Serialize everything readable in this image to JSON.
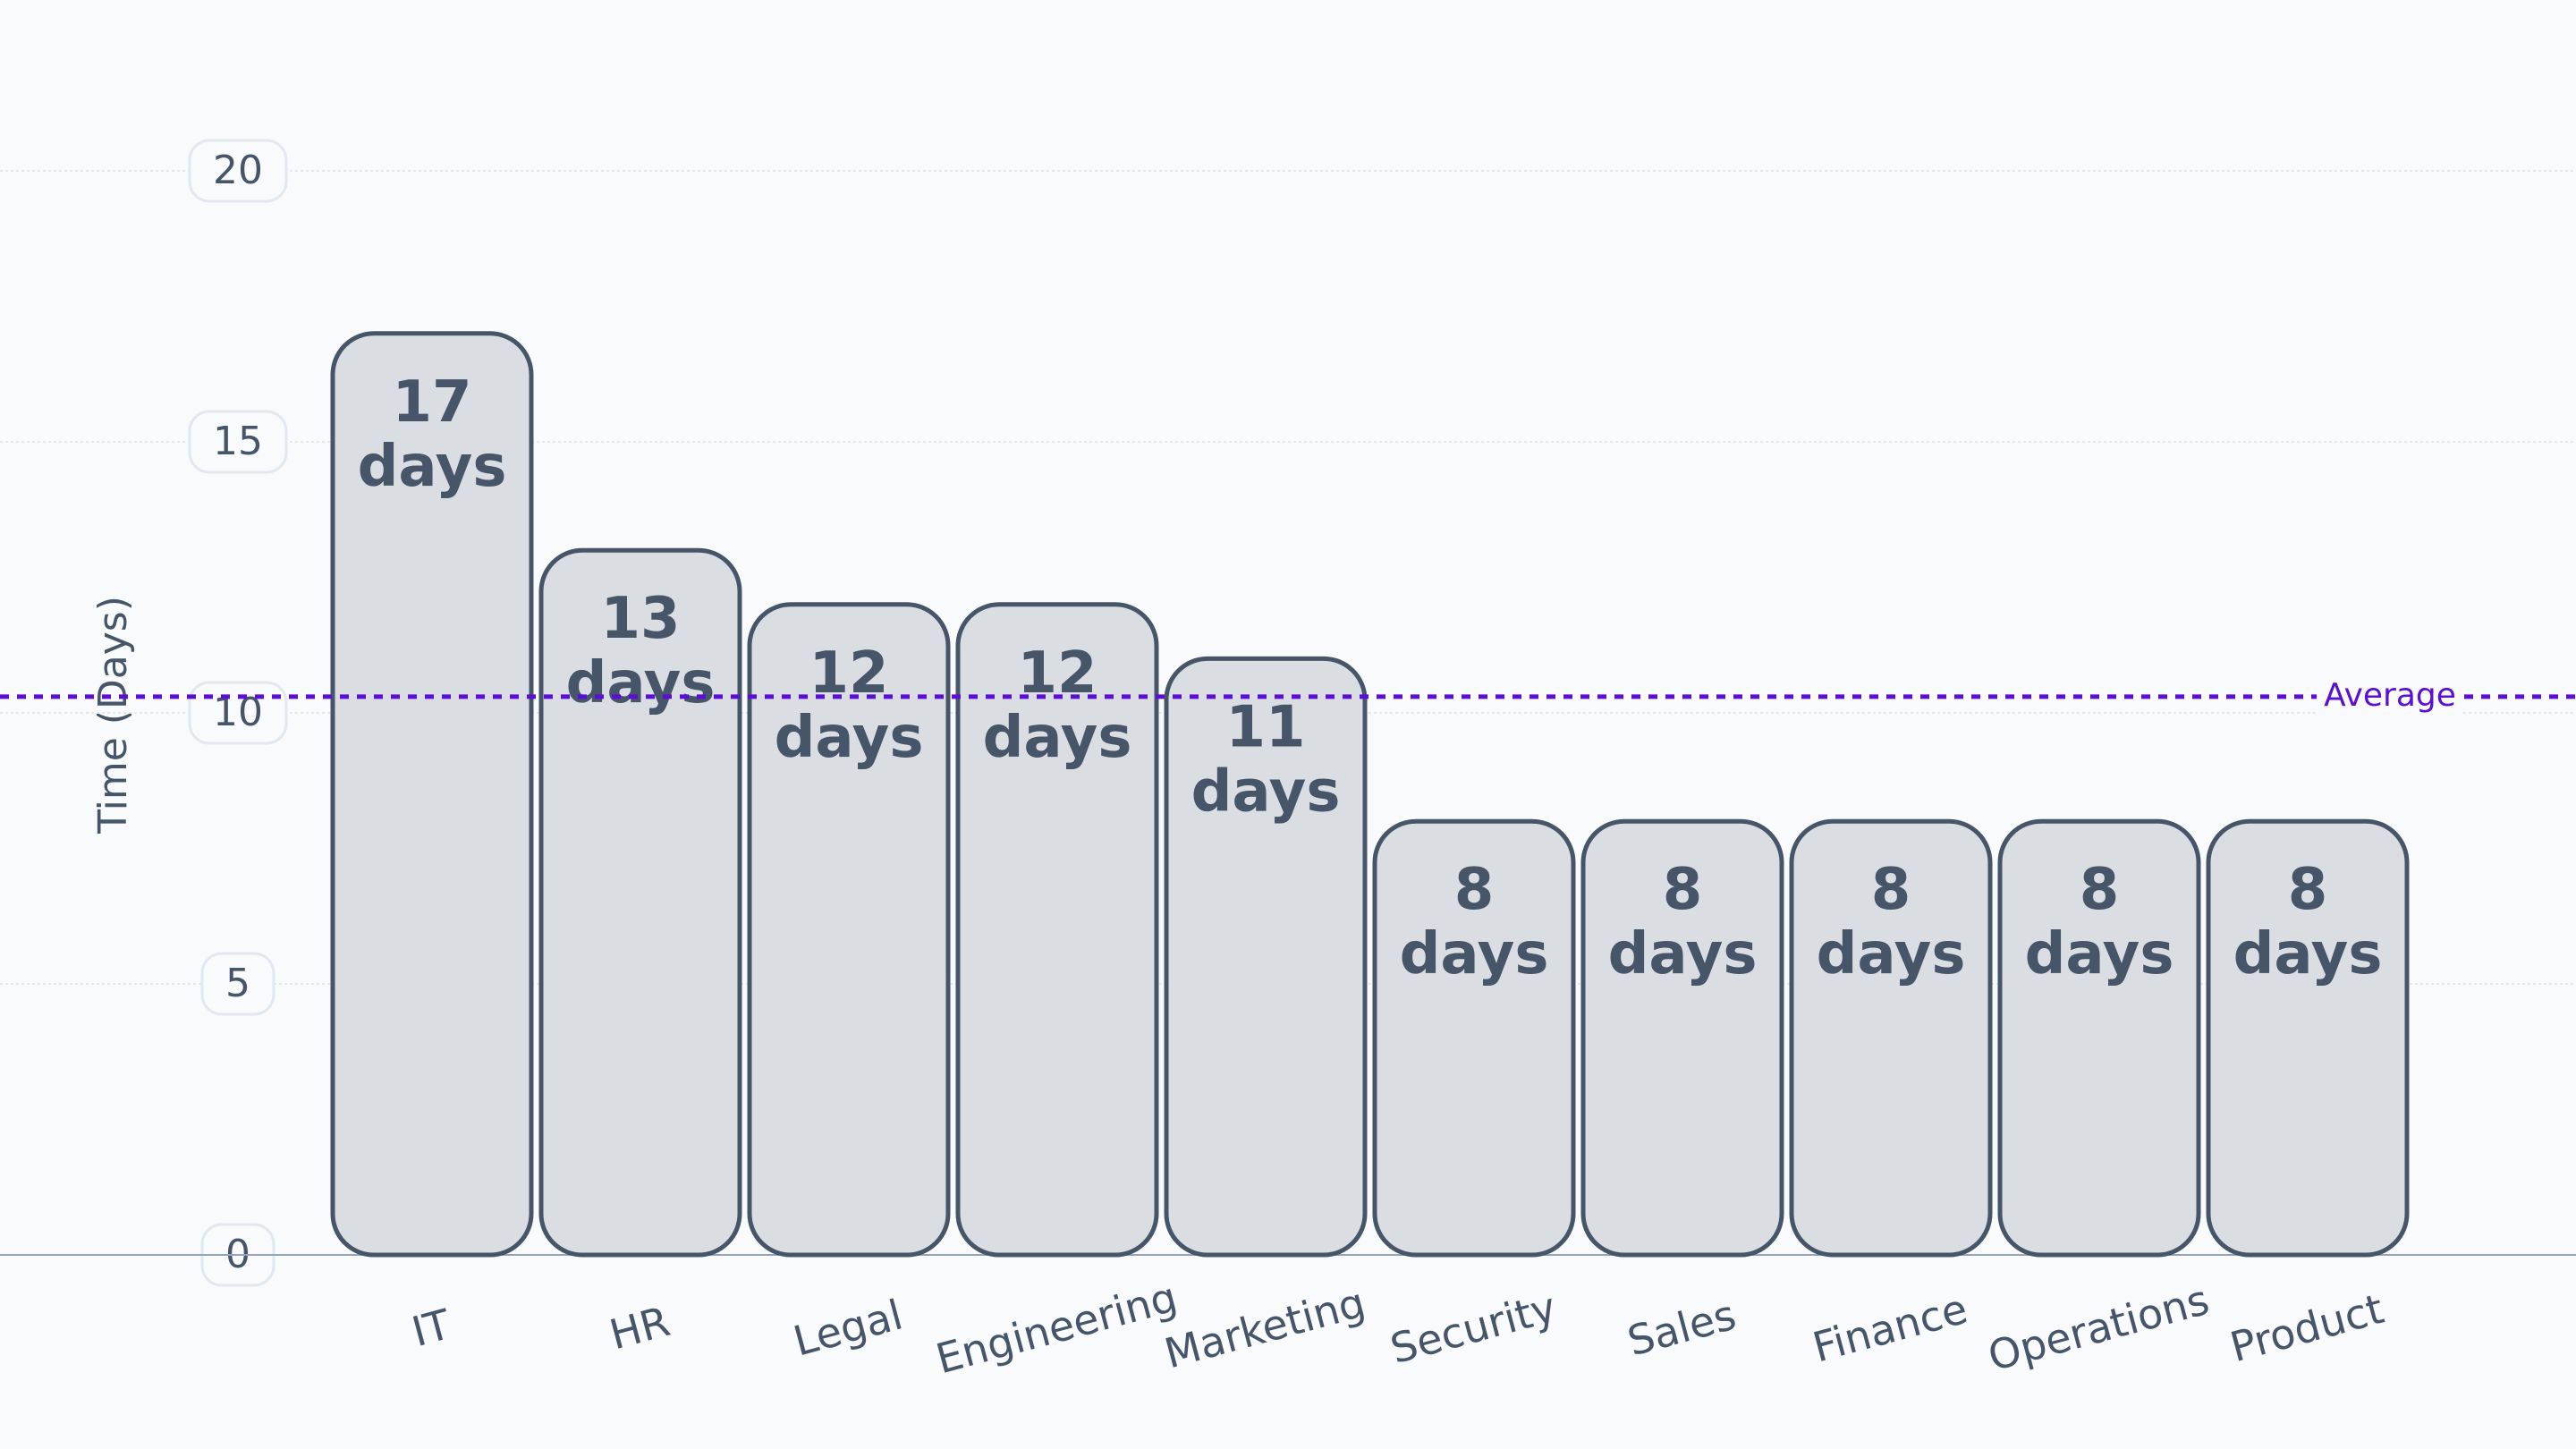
{
  "chart_data": {
    "type": "bar",
    "y_label": "Time (Days)",
    "categories": [
      "IT",
      "HR",
      "Legal",
      "Engineering",
      "Marketing",
      "Security",
      "Sales",
      "Finance",
      "Operations",
      "Product"
    ],
    "values": [
      17,
      13,
      12,
      12,
      11,
      8,
      8,
      8,
      8,
      8
    ],
    "value_labels": [
      "17 days",
      "13 days",
      "12 days",
      "12 days",
      "11 days",
      "8 days",
      "8 days",
      "8 days",
      "8 days",
      "8 days"
    ],
    "color": "#dadee2",
    "ylim": [
      0,
      20
    ],
    "yticks": [
      0,
      5,
      10,
      15,
      20
    ],
    "grid": true,
    "average": {
      "value": 10.3,
      "label": "Average",
      "color": "#5b0fd6"
    }
  }
}
